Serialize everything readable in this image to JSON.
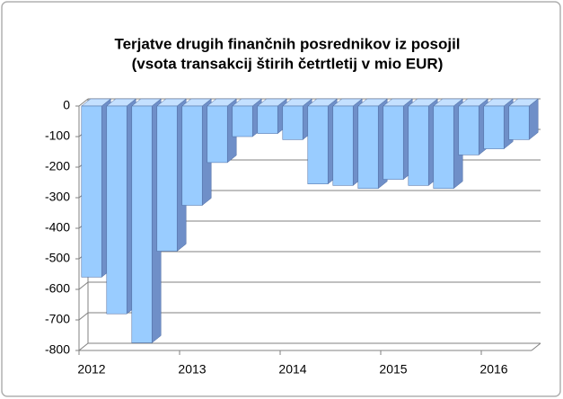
{
  "chart_data": {
    "type": "bar",
    "title": [
      "Terjatve drugih finančnih posrednikov iz posojil",
      "(vsota transakcij štirih četrtletij v mio EUR)"
    ],
    "categories": [
      "2012",
      null,
      null,
      null,
      "2013",
      null,
      null,
      null,
      "2014",
      null,
      null,
      null,
      "2015",
      null,
      null,
      null,
      "2016",
      null
    ],
    "values": [
      -560,
      -680,
      -775,
      -475,
      -325,
      -185,
      -100,
      -90,
      -110,
      -255,
      -260,
      -270,
      -240,
      -260,
      -270,
      -160,
      -140,
      -110
    ],
    "color": "#99ccff",
    "ylim": [
      -800,
      0
    ],
    "yticks": [
      -800,
      -700,
      -600,
      -500,
      -400,
      -300,
      -200,
      -100,
      0
    ],
    "grid": true
  }
}
